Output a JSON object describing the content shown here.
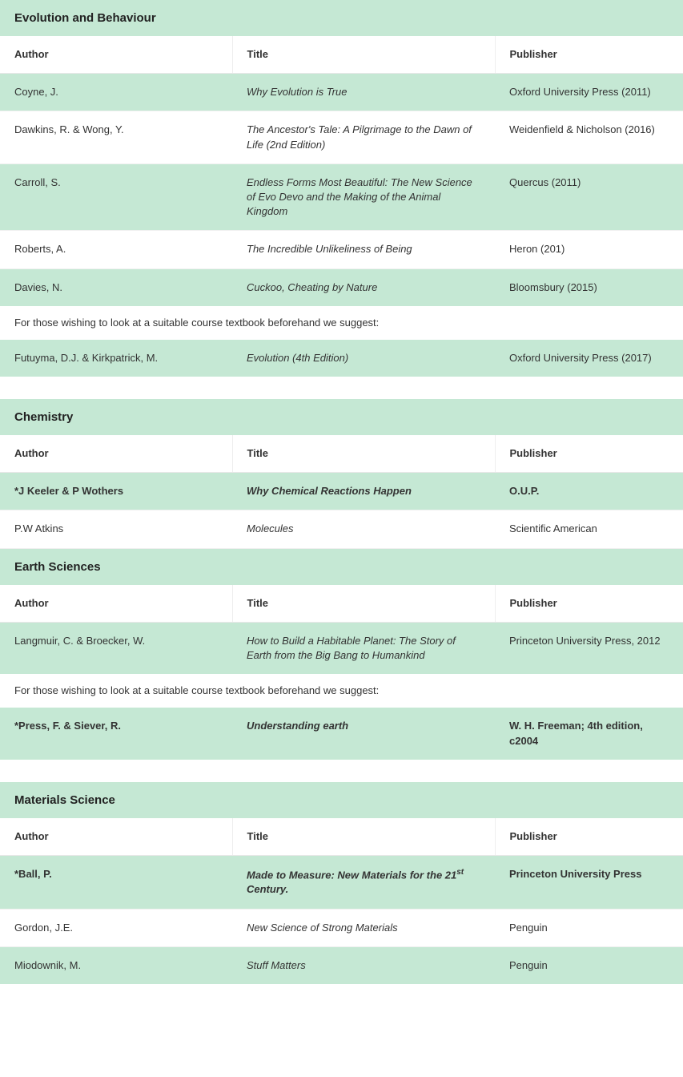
{
  "colors": {
    "row_even_bg": "#c5e8d4",
    "row_odd_bg": "#ffffff",
    "text": "#333333",
    "heading_text": "#222222",
    "border_light": "#eeeeee"
  },
  "columns": {
    "author": "Author",
    "title": "Title",
    "publisher": "Publisher"
  },
  "sections": [
    {
      "heading": "Evolution and Behaviour",
      "rows": [
        {
          "type": "data",
          "stripe": "even",
          "bold": false,
          "author": "Coyne, J.",
          "title": "Why Evolution is True",
          "publisher": "Oxford University Press (2011)"
        },
        {
          "type": "data",
          "stripe": "odd",
          "bold": false,
          "author": "Dawkins, R. & Wong, Y.",
          "title": "The Ancestor's Tale: A Pilgrimage to the Dawn of Life (2nd Edition)",
          "publisher": "Weidenfield & Nicholson (2016)"
        },
        {
          "type": "data",
          "stripe": "even",
          "bold": false,
          "author": "Carroll, S.",
          "title": "Endless Forms Most Beautiful: The New Science of Evo Devo and the Making of the Animal Kingdom",
          "publisher": "Quercus (2011)"
        },
        {
          "type": "data",
          "stripe": "odd",
          "bold": false,
          "author": "Roberts, A.",
          "title": "The Incredible Unlikeliness of Being",
          "publisher": "Heron (201)"
        },
        {
          "type": "data",
          "stripe": "even",
          "bold": false,
          "author": "Davies, N.",
          "title": "Cuckoo, Cheating by Nature",
          "publisher": "Bloomsbury (2015)"
        },
        {
          "type": "note",
          "text": "For those wishing to look at a suitable course textbook beforehand we suggest:"
        },
        {
          "type": "data",
          "stripe": "even",
          "bold": false,
          "author": "Futuyma, D.J. & Kirkpatrick, M.",
          "title": "Evolution (4th Edition)",
          "publisher": "Oxford University Press (2017)"
        }
      ]
    },
    {
      "heading": "Chemistry",
      "rows": [
        {
          "type": "data",
          "stripe": "even",
          "bold": true,
          "author": "*J Keeler & P Wothers",
          "title": "Why Chemical Reactions Happen",
          "publisher": "O.U.P."
        },
        {
          "type": "data",
          "stripe": "odd",
          "bold": false,
          "author": "P.W Atkins",
          "title": "Molecules",
          "publisher": "Scientific American"
        }
      ]
    },
    {
      "heading": "Earth Sciences",
      "no_top_gap": true,
      "rows": [
        {
          "type": "data",
          "stripe": "even",
          "bold": false,
          "author": "Langmuir, C. & Broecker, W.",
          "title": "How to Build a Habitable Planet: The Story of Earth from the Big Bang to Humankind",
          "publisher": "Princeton University Press, 2012"
        },
        {
          "type": "note",
          "text": "For those wishing to look at a suitable course textbook beforehand we suggest:"
        },
        {
          "type": "data",
          "stripe": "even",
          "bold": true,
          "author": "*Press, F. & Siever, R.",
          "title": "Understanding earth",
          "publisher": "W. H. Freeman; 4th edition, c2004"
        }
      ]
    },
    {
      "heading": "Materials Science",
      "rows": [
        {
          "type": "data",
          "stripe": "even",
          "bold": true,
          "author": "*Ball, P.",
          "title_html": "Made to Measure: New Materials for the 21<sup>st</sup> Century.",
          "publisher": "Princeton University Press"
        },
        {
          "type": "data",
          "stripe": "odd",
          "bold": false,
          "author": "Gordon, J.E.",
          "title": "New Science of Strong Materials",
          "publisher": "Penguin"
        },
        {
          "type": "data",
          "stripe": "even",
          "bold": false,
          "author": "Miodownik, M.",
          "title": "Stuff Matters",
          "publisher": "Penguin"
        }
      ]
    }
  ]
}
